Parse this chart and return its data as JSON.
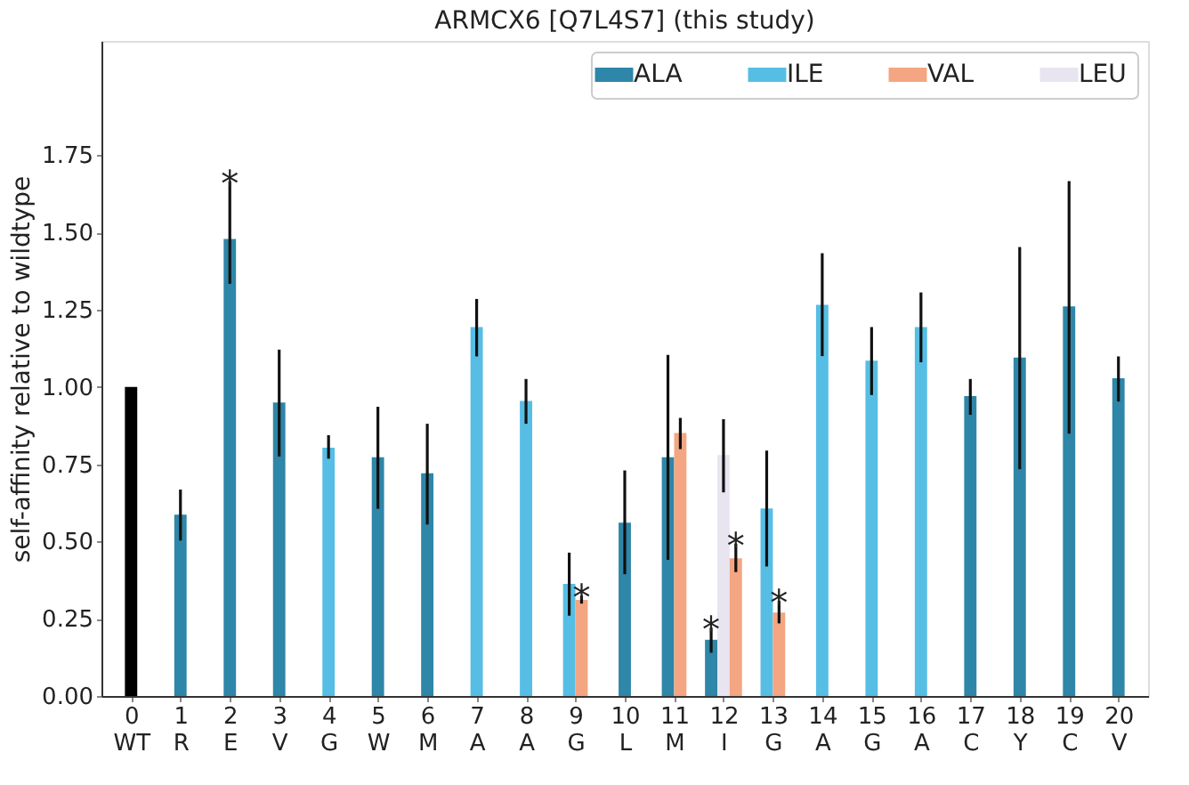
{
  "chart_data": {
    "type": "bar",
    "title": "ARMCX6 [Q7L4S7] (this study)",
    "ylabel": "self-affinity relative to wildtype",
    "categories": [
      "0\nWT",
      "1\nR",
      "2\nE",
      "3\nV",
      "4\nG",
      "5\nW",
      "6\nM",
      "7\nA",
      "8\nA",
      "9\nG",
      "10\nL",
      "11\nM",
      "12\nI",
      "13\nG",
      "14\nA",
      "15\nG",
      "16\nA",
      "17\nC",
      "18\nY",
      "19\nC",
      "20\nV"
    ],
    "series": [
      {
        "name": "ALA",
        "color": "#2e86a8",
        "values": [
          null,
          0.587,
          1.479,
          0.95,
          null,
          0.773,
          0.721,
          null,
          null,
          null,
          0.561,
          0.773,
          0.182,
          null,
          null,
          null,
          null,
          0.971,
          1.095,
          1.261,
          1.028
        ],
        "errors": [
          null,
          [
            0.503,
            0.668
          ],
          [
            1.334,
            1.666
          ],
          [
            0.775,
            1.121
          ],
          null,
          [
            0.606,
            0.936
          ],
          [
            0.555,
            0.881
          ],
          null,
          null,
          null,
          [
            0.394,
            0.73
          ],
          [
            0.441,
            1.104
          ],
          [
            0.14,
            0.221
          ],
          null,
          null,
          null,
          null,
          [
            0.91,
            1.026
          ],
          [
            0.734,
            1.453
          ],
          [
            0.849,
            1.666
          ],
          [
            0.953,
            1.099
          ]
        ]
      },
      {
        "name": "ILE",
        "color": "#56bee4",
        "values": [
          null,
          null,
          null,
          null,
          0.804,
          null,
          null,
          1.194,
          0.955,
          0.363,
          null,
          null,
          null,
          0.607,
          1.266,
          1.085,
          1.194,
          null,
          null,
          null,
          null
        ],
        "errors": [
          null,
          null,
          null,
          null,
          [
            0.768,
            0.844
          ],
          null,
          null,
          [
            1.099,
            1.285
          ],
          [
            0.881,
            1.026
          ],
          [
            0.26,
            0.464
          ],
          null,
          null,
          null,
          [
            0.419,
            0.794
          ],
          [
            1.1,
            1.433
          ],
          [
            0.974,
            1.194
          ],
          [
            1.08,
            1.306
          ],
          null,
          null,
          null,
          null
        ]
      },
      {
        "name": "VAL",
        "color": "#f4a582",
        "values": [
          null,
          null,
          null,
          null,
          null,
          null,
          null,
          null,
          null,
          0.311,
          null,
          0.851,
          0.446,
          0.27,
          null,
          null,
          null,
          null,
          null,
          null,
          null
        ],
        "errors": [
          null,
          null,
          null,
          null,
          null,
          null,
          null,
          null,
          null,
          [
            0.299,
            0.325
          ],
          null,
          [
            0.799,
            0.9
          ],
          [
            0.401,
            0.493
          ],
          [
            0.235,
            0.308
          ],
          null,
          null,
          null,
          null,
          null,
          null,
          null
        ]
      },
      {
        "name": "LEU",
        "color": "#e8e4f0",
        "values": [
          null,
          null,
          null,
          null,
          null,
          null,
          null,
          null,
          null,
          null,
          null,
          null,
          0.78,
          null,
          null,
          null,
          null,
          null,
          null,
          null,
          null
        ],
        "errors": [
          null,
          null,
          null,
          null,
          null,
          null,
          null,
          null,
          null,
          null,
          null,
          null,
          [
            0.659,
            0.896
          ],
          null,
          null,
          null,
          null,
          null,
          null,
          null,
          null
        ]
      },
      {
        "color": "#000000",
        "values": [
          1.0,
          null,
          null,
          null,
          null,
          null,
          null,
          null,
          null,
          null,
          null,
          null,
          null,
          null,
          null,
          null,
          null,
          null,
          null,
          null,
          null
        ]
      }
    ],
    "annotations": [
      {
        "text": "*",
        "x": "2\nE",
        "y": 1.666
      },
      {
        "text": "*",
        "x": "9\nG",
        "y": 0.325
      },
      {
        "text": "*",
        "x": "12\nI",
        "y": 0.221
      },
      {
        "text": "*",
        "x": "12\nI",
        "y": 0.493
      },
      {
        "text": "*",
        "x": "13\nG",
        "y": 0.308
      }
    ],
    "ylim": [
      0,
      2.12
    ],
    "yticks": [
      {
        "value": 0,
        "label": "0.00"
      },
      0.25,
      {
        "value": 0.5,
        "label": "0.50"
      },
      0.75,
      {
        "value": 1,
        "label": "1.00"
      },
      1.25,
      {
        "value": 1.5,
        "label": "1.50"
      },
      1.75
    ],
    "grid": false,
    "legend": "top right"
  }
}
